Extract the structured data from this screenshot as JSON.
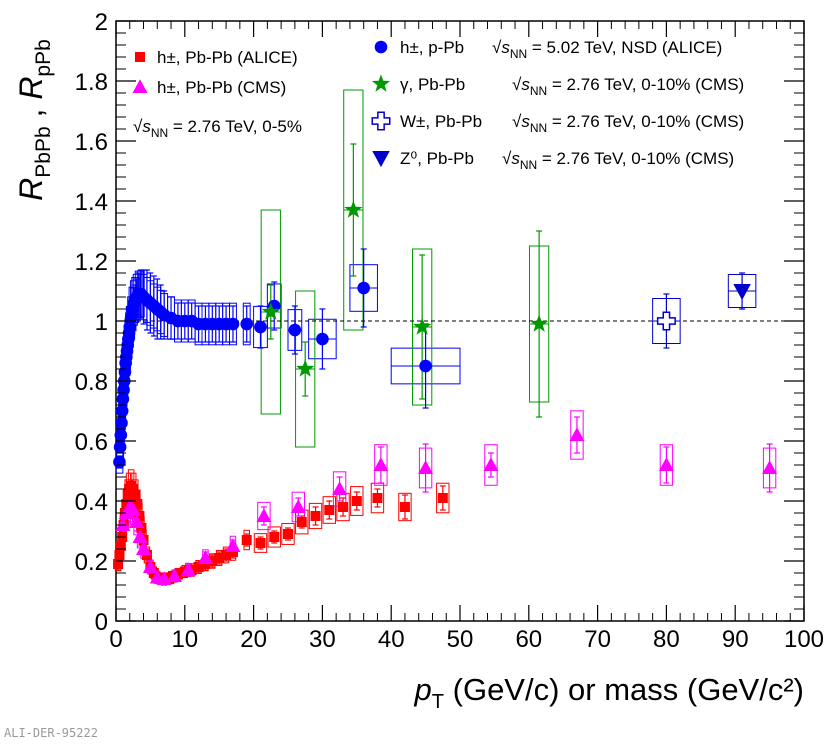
{
  "footer_id": "ALI-DER-95222",
  "chart_data": {
    "type": "scatter",
    "xlabel": {
      "main": "p",
      "sub": "T",
      "rest": " (GeV/c) or mass (GeV/c²)"
    },
    "ylabel": {
      "r1": "R",
      "s1": "PbPb",
      "sep": " , ",
      "r2": "R",
      "s2": "pPb"
    },
    "xlim": [
      0,
      100
    ],
    "ylim": [
      0,
      2
    ],
    "xticks": [
      0,
      10,
      20,
      30,
      40,
      50,
      60,
      70,
      80,
      90,
      100
    ],
    "yticks": [
      0,
      0.2,
      0.4,
      0.6,
      0.8,
      1,
      1.2,
      1.4,
      1.6,
      1.8,
      2
    ],
    "ytick_labels": [
      "0",
      "0.2",
      "0.4",
      "0.6",
      "0.8",
      "1",
      "1.2",
      "1.4",
      "1.6",
      "1.8",
      "2"
    ],
    "reference_line": 1,
    "annotation": {
      "prefix": "√",
      "s": "s",
      "sub": "NN",
      "rest": " = 2.76 TeV, 0-5%"
    },
    "legend_left": [
      {
        "series": 0,
        "text": "h±, Pb-Pb (ALICE)"
      },
      {
        "series": 1,
        "text": "h±, Pb-Pb (CMS)"
      }
    ],
    "legend_right": [
      {
        "series": 2,
        "text": "h±, p-Pb",
        "energy": " = 5.02 TeV, NSD (ALICE)"
      },
      {
        "series": 3,
        "text": "γ, Pb-Pb",
        "energy": " = 2.76 TeV, 0-10% (CMS)"
      },
      {
        "series": 4,
        "text": "W±, Pb-Pb",
        "energy": " = 2.76 TeV, 0-10% (CMS)"
      },
      {
        "series": 5,
        "text": "Z⁰, Pb-Pb",
        "energy": " = 2.76 TeV, 0-10% (CMS)"
      }
    ],
    "series": [
      {
        "name": "h±, Pb-Pb (ALICE)",
        "marker": "square",
        "color": "#ff0000",
        "points": [
          [
            0.3,
            0.19,
            0.02,
            0.02
          ],
          [
            0.5,
            0.22,
            0.02,
            0.02
          ],
          [
            0.7,
            0.25,
            0.02,
            0.02
          ],
          [
            0.9,
            0.28,
            0.02,
            0.02
          ],
          [
            1.1,
            0.32,
            0.02,
            0.02
          ],
          [
            1.3,
            0.36,
            0.02,
            0.02
          ],
          [
            1.5,
            0.39,
            0.02,
            0.02
          ],
          [
            1.7,
            0.42,
            0.02,
            0.02
          ],
          [
            1.9,
            0.44,
            0.02,
            0.02
          ],
          [
            2.2,
            0.45,
            0.02,
            0.02
          ],
          [
            2.5,
            0.44,
            0.02,
            0.02
          ],
          [
            2.8,
            0.42,
            0.02,
            0.02
          ],
          [
            3.1,
            0.39,
            0.02,
            0.02
          ],
          [
            3.4,
            0.35,
            0.02,
            0.02
          ],
          [
            3.7,
            0.31,
            0.02,
            0.02
          ],
          [
            4.0,
            0.27,
            0.02,
            0.02
          ],
          [
            4.5,
            0.22,
            0.02,
            0.02
          ],
          [
            5.0,
            0.18,
            0.02,
            0.02
          ],
          [
            5.5,
            0.16,
            0.02,
            0.02
          ],
          [
            6.0,
            0.145,
            0.02,
            0.02
          ],
          [
            7.0,
            0.14,
            0.02,
            0.02
          ],
          [
            8.0,
            0.145,
            0.02,
            0.02
          ],
          [
            9.0,
            0.155,
            0.02,
            0.02
          ],
          [
            10.0,
            0.165,
            0.02,
            0.02
          ],
          [
            11.0,
            0.17,
            0.02,
            0.02
          ],
          [
            12.0,
            0.18,
            0.02,
            0.02
          ],
          [
            13.0,
            0.19,
            0.02,
            0.02
          ],
          [
            14.0,
            0.2,
            0.02,
            0.02
          ],
          [
            15.0,
            0.21,
            0.02,
            0.02
          ],
          [
            16.0,
            0.22,
            0.02,
            0.02
          ],
          [
            17.0,
            0.23,
            0.02,
            0.02
          ],
          [
            19.0,
            0.27,
            0.02,
            0.02
          ],
          [
            21.0,
            0.26,
            0.02,
            0.02
          ],
          [
            23.0,
            0.28,
            0.02,
            0.02
          ],
          [
            25.0,
            0.29,
            0.02,
            0.02
          ],
          [
            27.0,
            0.33,
            0.02,
            0.02
          ],
          [
            29.0,
            0.35,
            0.03,
            0.03
          ],
          [
            31.0,
            0.37,
            0.03,
            0.03
          ],
          [
            33.0,
            0.38,
            0.03,
            0.03
          ],
          [
            35.0,
            0.4,
            0.03,
            0.03
          ],
          [
            38.0,
            0.41,
            0.03,
            0.03
          ],
          [
            42.0,
            0.38,
            0.04,
            0.04
          ],
          [
            47.5,
            0.41,
            0.04,
            0.04
          ]
        ]
      },
      {
        "name": "h±, Pb-Pb (CMS)",
        "marker": "triangle",
        "color": "#ff00ff",
        "points": [
          [
            1.0,
            0.32,
            0.03,
            0.03
          ],
          [
            1.5,
            0.36,
            0.03,
            0.03
          ],
          [
            2.0,
            0.38,
            0.03,
            0.03
          ],
          [
            2.5,
            0.37,
            0.03,
            0.03
          ],
          [
            3.0,
            0.33,
            0.03,
            0.03
          ],
          [
            3.5,
            0.28,
            0.03,
            0.03
          ],
          [
            4.0,
            0.24,
            0.02,
            0.02
          ],
          [
            5.0,
            0.18,
            0.02,
            0.02
          ],
          [
            6.0,
            0.145,
            0.02,
            0.02
          ],
          [
            7.0,
            0.14,
            0.02,
            0.02
          ],
          [
            8.5,
            0.15,
            0.02,
            0.02
          ],
          [
            10.5,
            0.17,
            0.02,
            0.02
          ],
          [
            13.0,
            0.21,
            0.02,
            0.02
          ],
          [
            17.0,
            0.25,
            0.02,
            0.02
          ],
          [
            21.5,
            0.35,
            0.03,
            0.03
          ],
          [
            26.5,
            0.38,
            0.03,
            0.03
          ],
          [
            32.5,
            0.44,
            0.04,
            0.04
          ],
          [
            38.5,
            0.52,
            0.06,
            0.06
          ],
          [
            45.0,
            0.51,
            0.08,
            0.08
          ],
          [
            54.5,
            0.52,
            0.04,
            0.04
          ],
          [
            67.0,
            0.62,
            0.06,
            0.06
          ],
          [
            80.0,
            0.52,
            0.06,
            0.06
          ],
          [
            95.0,
            0.51,
            0.08,
            0.08
          ]
        ]
      },
      {
        "name": "h±, p-Pb",
        "marker": "circle",
        "color": "#0000ff",
        "points": [
          [
            0.5,
            0.53,
            0.02,
            0.02
          ],
          [
            0.6,
            0.58,
            0.02,
            0.02
          ],
          [
            0.7,
            0.62,
            0.02,
            0.02
          ],
          [
            0.8,
            0.66,
            0.02,
            0.02
          ],
          [
            0.9,
            0.7,
            0.02,
            0.02
          ],
          [
            1.0,
            0.74,
            0.02,
            0.02
          ],
          [
            1.1,
            0.77,
            0.02,
            0.02
          ],
          [
            1.2,
            0.8,
            0.02,
            0.02
          ],
          [
            1.3,
            0.83,
            0.02,
            0.02
          ],
          [
            1.4,
            0.86,
            0.03,
            0.03
          ],
          [
            1.5,
            0.88,
            0.03,
            0.03
          ],
          [
            1.6,
            0.9,
            0.03,
            0.03
          ],
          [
            1.7,
            0.92,
            0.03,
            0.03
          ],
          [
            1.8,
            0.94,
            0.03,
            0.03
          ],
          [
            1.9,
            0.96,
            0.03,
            0.03
          ],
          [
            2.0,
            0.98,
            0.03,
            0.03
          ],
          [
            2.2,
            1.01,
            0.04,
            0.04
          ],
          [
            2.4,
            1.04,
            0.04,
            0.04
          ],
          [
            2.6,
            1.06,
            0.05,
            0.05
          ],
          [
            2.8,
            1.07,
            0.05,
            0.05
          ],
          [
            3.0,
            1.08,
            0.06,
            0.06
          ],
          [
            3.3,
            1.09,
            0.07,
            0.07
          ],
          [
            3.6,
            1.09,
            0.08,
            0.08
          ],
          [
            4.0,
            1.08,
            0.09,
            0.09
          ],
          [
            4.5,
            1.07,
            0.1,
            0.1
          ],
          [
            5.0,
            1.06,
            0.1,
            0.1
          ],
          [
            5.5,
            1.05,
            0.1,
            0.1
          ],
          [
            6.0,
            1.04,
            0.1,
            0.1
          ],
          [
            6.5,
            1.03,
            0.09,
            0.09
          ],
          [
            7.0,
            1.02,
            0.08,
            0.08
          ],
          [
            8.0,
            1.01,
            0.07,
            0.07
          ],
          [
            9.0,
            1.0,
            0.06,
            0.06
          ],
          [
            10.0,
            1.0,
            0.06,
            0.06
          ],
          [
            11.0,
            1.0,
            0.06,
            0.06
          ],
          [
            12.0,
            0.99,
            0.06,
            0.06
          ],
          [
            13.0,
            0.99,
            0.06,
            0.06
          ],
          [
            14.0,
            0.99,
            0.06,
            0.06
          ],
          [
            15.0,
            0.99,
            0.06,
            0.06
          ],
          [
            16.0,
            0.99,
            0.06,
            0.06
          ],
          [
            17.0,
            0.99,
            0.06,
            0.06
          ],
          [
            19.0,
            0.99,
            0.06,
            0.06
          ],
          [
            21.0,
            0.98,
            0.07,
            0.07
          ],
          [
            23.0,
            1.05,
            0.08,
            0.08
          ],
          [
            26.0,
            0.97,
            0.08,
            0.08
          ],
          [
            30.0,
            0.94,
            0.1,
            0.1
          ],
          [
            36.0,
            1.11,
            0.13,
            0.13
          ],
          [
            45.0,
            0.85,
            0.14,
            0.14
          ]
        ]
      },
      {
        "name": "γ, Pb-Pb",
        "marker": "star",
        "color": "#009900",
        "points": [
          [
            22.5,
            1.03,
            0.09,
            0.09
          ],
          [
            27.5,
            0.84,
            0.09,
            0.09
          ],
          [
            34.5,
            1.37,
            0.22,
            0.22
          ],
          [
            44.5,
            0.98,
            0.24,
            0.24
          ],
          [
            61.5,
            0.99,
            0.31,
            0.31
          ]
        ]
      },
      {
        "name": "W±, Pb-Pb",
        "marker": "open-cross",
        "color": "#0000cc",
        "points": [
          [
            80.0,
            1.0,
            0.09,
            0.09
          ]
        ]
      },
      {
        "name": "Z⁰, Pb-Pb",
        "marker": "down-triangle",
        "color": "#0000cc",
        "points": [
          [
            91.0,
            1.1,
            0.06,
            0.06
          ]
        ]
      }
    ]
  }
}
